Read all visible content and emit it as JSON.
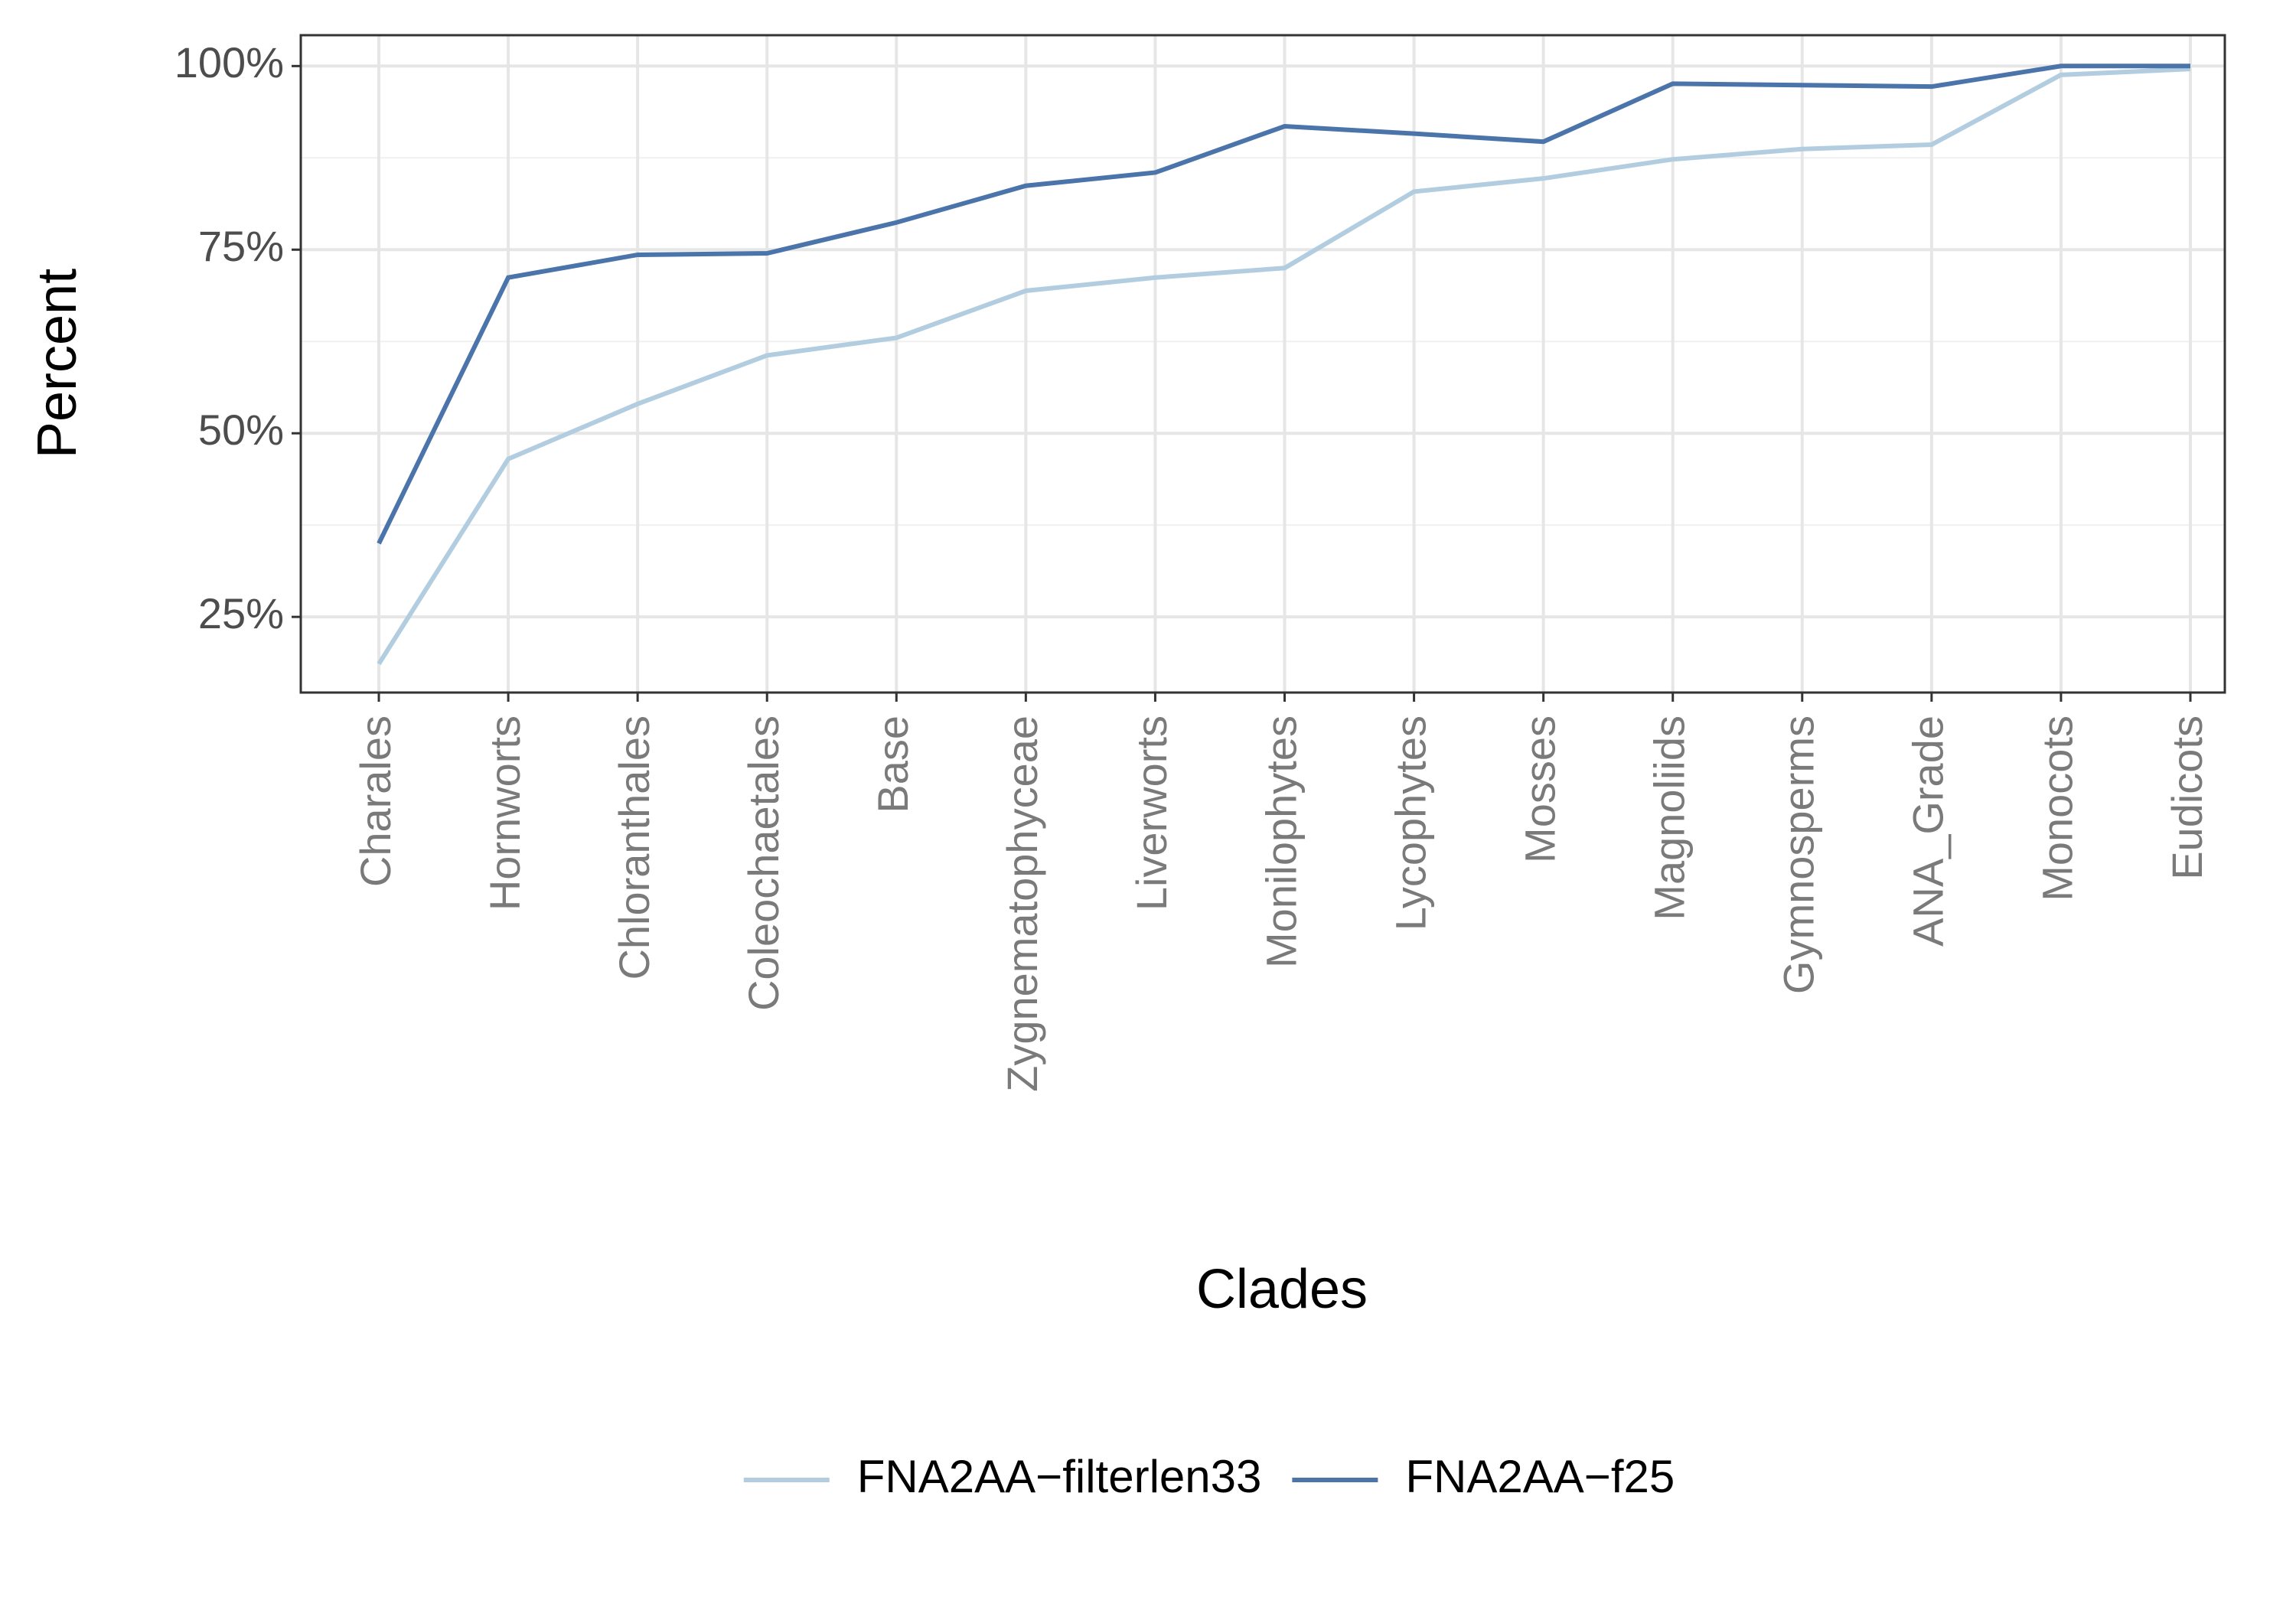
{
  "chart_data": {
    "type": "line",
    "x_label": "Clades",
    "y_label": "Percent",
    "categories": [
      "Charales",
      "Hornworts",
      "Chloranthales",
      "Coleochaetales",
      "Base",
      "Zygnematophyceae",
      "Liverworts",
      "Monilophytes",
      "Lycophytes",
      "Mosses",
      "Magnoliids",
      "Gymnosperms",
      "ANA_Grade",
      "Monocots",
      "Eudicots"
    ],
    "series": [
      {
        "name": "FNA2AA−filterlen33",
        "color": "#b3cde0",
        "values": [
          18.6,
          46.5,
          54.0,
          60.6,
          63.0,
          69.4,
          71.2,
          72.5,
          82.9,
          84.7,
          87.3,
          88.7,
          89.3,
          98.8,
          99.6
        ]
      },
      {
        "name": "FNA2AA−f25",
        "color": "#4a74aa",
        "values": [
          35.0,
          71.2,
          74.3,
          74.5,
          78.7,
          83.7,
          85.5,
          91.8,
          90.8,
          89.7,
          97.6,
          97.4,
          97.2,
          100,
          100
        ]
      }
    ],
    "ylim": [
      14.7,
      104.2
    ],
    "yticks": [
      {
        "value": 25,
        "label": "25%"
      },
      {
        "value": 50,
        "label": "50%"
      },
      {
        "value": 75,
        "label": "75%"
      },
      {
        "value": 100,
        "label": "100%"
      }
    ],
    "grid": true,
    "legend": "bottom"
  }
}
